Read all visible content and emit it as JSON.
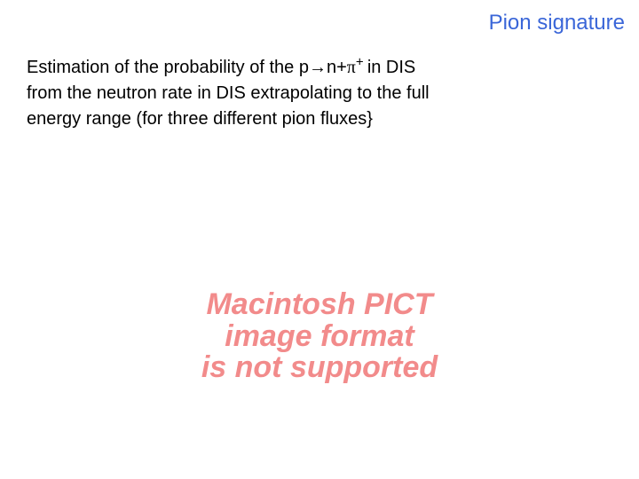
{
  "header": {
    "title": "Pion signature",
    "color": "#3a66d8",
    "fontsize": 24
  },
  "body": {
    "line1_prefix": "Estimation of the probability of the p→n+",
    "line1_symbol": "π",
    "line1_sup": "+ ",
    "line1_suffix": "in DIS",
    "line2": "from the neutron rate in DIS extrapolating to the full",
    "line3": "energy range (for three different pion fluxes}",
    "color": "#000000",
    "fontsize": 20
  },
  "error": {
    "line1": "Macintosh PICT",
    "line2": "image format",
    "line3": "is not supported",
    "color": "#f28b8b",
    "fontsize": 34
  },
  "background_color": "#ffffff"
}
